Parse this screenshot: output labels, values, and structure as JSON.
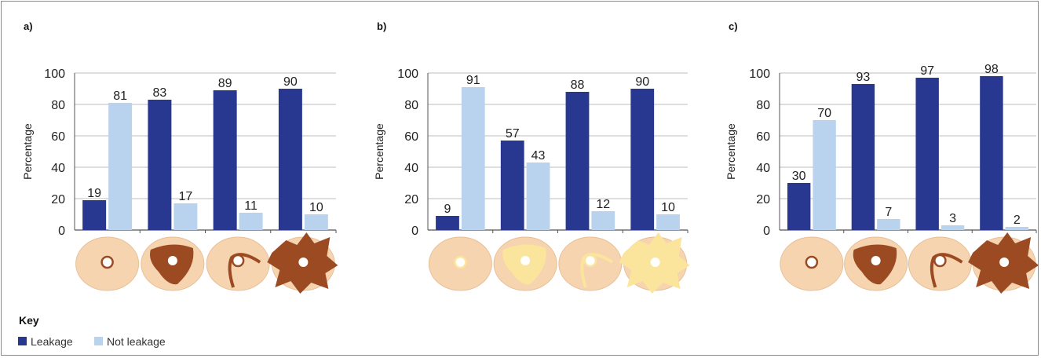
{
  "colors": {
    "leakage": "#283891",
    "not_leakage": "#b9d3ef",
    "skin": "#f6d4b0",
    "stoma": "#9b4a21",
    "stool_b": "#fbe59c"
  },
  "chart_data": [
    {
      "type": "bar",
      "panel": "a)",
      "ylabel": "Percentage",
      "ylim": [
        0,
        100
      ],
      "yticks": [
        "0",
        "20",
        "40",
        "60",
        "80",
        "100"
      ],
      "grid": true,
      "categories": [
        "",
        "",
        "",
        ""
      ],
      "category_icons": [
        "ring-small-stain-icon",
        "large-stain-icon",
        "channel-stain-icon",
        "spread-stain-icon"
      ],
      "series": [
        {
          "name": "Leakage",
          "values": [
            19,
            83,
            89,
            90
          ]
        },
        {
          "name": "Not leakage",
          "values": [
            81,
            17,
            11,
            10
          ]
        }
      ]
    },
    {
      "type": "bar",
      "panel": "b)",
      "ylabel": "Percentage",
      "ylim": [
        0,
        100
      ],
      "yticks": [
        "0",
        "20",
        "40",
        "60",
        "80",
        "100"
      ],
      "grid": true,
      "categories": [
        "",
        "",
        "",
        ""
      ],
      "category_icons": [
        "ring-small-stain-icon",
        "large-stain-icon",
        "channel-stain-icon",
        "spread-stain-icon"
      ],
      "series": [
        {
          "name": "Leakage",
          "values": [
            9,
            57,
            88,
            90
          ]
        },
        {
          "name": "Not leakage",
          "values": [
            91,
            43,
            12,
            10
          ]
        }
      ]
    },
    {
      "type": "bar",
      "panel": "c)",
      "ylabel": "Percentage",
      "ylim": [
        0,
        100
      ],
      "yticks": [
        "0",
        "20",
        "40",
        "60",
        "80",
        "100"
      ],
      "grid": true,
      "categories": [
        "",
        "",
        "",
        ""
      ],
      "category_icons": [
        "ring-small-stain-icon",
        "large-stain-icon",
        "channel-stain-icon",
        "spread-stain-icon"
      ],
      "series": [
        {
          "name": "Leakage",
          "values": [
            30,
            93,
            97,
            98
          ]
        },
        {
          "name": "Not leakage",
          "values": [
            70,
            7,
            3,
            2
          ]
        }
      ]
    }
  ],
  "key": {
    "title": "Key",
    "items": [
      {
        "label": "Leakage",
        "color": "#283891"
      },
      {
        "label": "Not leakage",
        "color": "#b9d3ef"
      }
    ]
  }
}
